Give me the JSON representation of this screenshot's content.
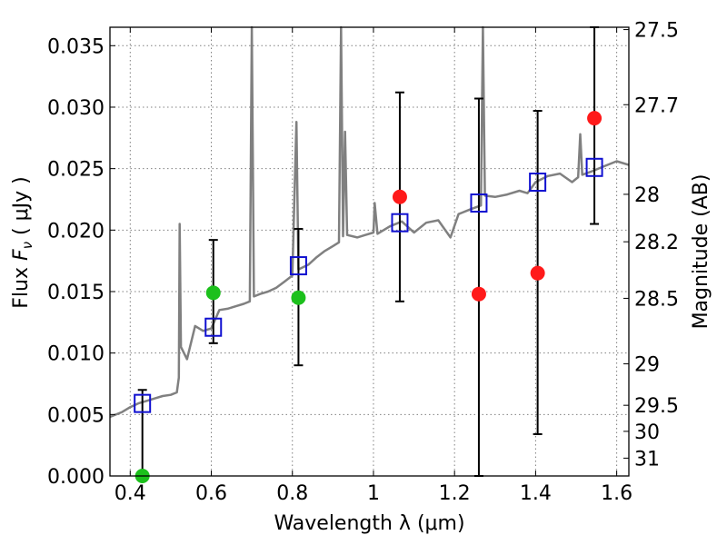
{
  "chart_data": {
    "type": "scatter",
    "title": "",
    "xlabel": "Wavelength  λ (μm)",
    "ylabel": "Flux  F_ν  ( μJy )",
    "ylabel_parts": {
      "main": "Flux  ",
      "symbol": "F",
      "sub": "ν",
      "unit": "  ( μJy )"
    },
    "y2label": "Magnitude (AB)",
    "xlim": [
      0.35,
      1.63
    ],
    "ylim": [
      0.0,
      0.0365
    ],
    "grid": true,
    "x_ticks": [
      0.4,
      0.6,
      0.8,
      1.0,
      1.2,
      1.4,
      1.6
    ],
    "x_tick_labels": [
      "0.4",
      "0.6",
      "0.8",
      "1",
      "1.2",
      "1.4",
      "1.6"
    ],
    "y_ticks": [
      0.0,
      0.005,
      0.01,
      0.015,
      0.02,
      0.025,
      0.03,
      0.035
    ],
    "y_tick_labels": [
      "0.000",
      "0.005",
      "0.010",
      "0.015",
      "0.020",
      "0.025",
      "0.030",
      "0.035"
    ],
    "y2_ticks": [
      {
        "label": "27.5",
        "flux": 0.03631
      },
      {
        "label": "27.7",
        "flux": 0.0302
      },
      {
        "label": "28",
        "flux": 0.02291
      },
      {
        "label": "28.2",
        "flux": 0.01905
      },
      {
        "label": "28.5",
        "flux": 0.01445
      },
      {
        "label": "29",
        "flux": 0.00912
      },
      {
        "label": "29.5",
        "flux": 0.00575
      },
      {
        "label": "30",
        "flux": 0.00363
      },
      {
        "label": "31",
        "flux": 0.00145
      }
    ],
    "series": [
      {
        "name": "",
        "kind": "line",
        "color": "#808080",
        "points": [
          [
            0.35,
            0.0048
          ],
          [
            0.38,
            0.0052
          ],
          [
            0.4,
            0.0056
          ],
          [
            0.42,
            0.0059
          ],
          [
            0.44,
            0.0061
          ],
          [
            0.46,
            0.0063
          ],
          [
            0.48,
            0.0065
          ],
          [
            0.5,
            0.0066
          ],
          [
            0.515,
            0.0068
          ],
          [
            0.52,
            0.008
          ],
          [
            0.522,
            0.0205
          ],
          [
            0.525,
            0.0105
          ],
          [
            0.54,
            0.0095
          ],
          [
            0.56,
            0.0122
          ],
          [
            0.58,
            0.0118
          ],
          [
            0.6,
            0.012
          ],
          [
            0.62,
            0.0135
          ],
          [
            0.64,
            0.0136
          ],
          [
            0.66,
            0.0138
          ],
          [
            0.68,
            0.014
          ],
          [
            0.695,
            0.0142
          ],
          [
            0.7,
            0.0365
          ],
          [
            0.705,
            0.0146
          ],
          [
            0.72,
            0.0148
          ],
          [
            0.74,
            0.015
          ],
          [
            0.76,
            0.0153
          ],
          [
            0.78,
            0.0158
          ],
          [
            0.8,
            0.0163
          ],
          [
            0.81,
            0.0288
          ],
          [
            0.815,
            0.0168
          ],
          [
            0.84,
            0.0172
          ],
          [
            0.86,
            0.0178
          ],
          [
            0.88,
            0.0183
          ],
          [
            0.9,
            0.0187
          ],
          [
            0.915,
            0.019
          ],
          [
            0.92,
            0.0365
          ],
          [
            0.925,
            0.0195
          ],
          [
            0.93,
            0.028
          ],
          [
            0.935,
            0.0196
          ],
          [
            0.96,
            0.0194
          ],
          [
            0.98,
            0.0196
          ],
          [
            1.0,
            0.0198
          ],
          [
            1.003,
            0.0222
          ],
          [
            1.01,
            0.0197
          ],
          [
            1.04,
            0.0203
          ],
          [
            1.07,
            0.0207
          ],
          [
            1.1,
            0.0198
          ],
          [
            1.13,
            0.0206
          ],
          [
            1.16,
            0.0208
          ],
          [
            1.19,
            0.0194
          ],
          [
            1.21,
            0.0213
          ],
          [
            1.24,
            0.0217
          ],
          [
            1.265,
            0.022
          ],
          [
            1.27,
            0.0365
          ],
          [
            1.275,
            0.0228
          ],
          [
            1.3,
            0.0227
          ],
          [
            1.33,
            0.0229
          ],
          [
            1.36,
            0.0232
          ],
          [
            1.38,
            0.023
          ],
          [
            1.4,
            0.0239
          ],
          [
            1.43,
            0.0244
          ],
          [
            1.46,
            0.0246
          ],
          [
            1.49,
            0.0239
          ],
          [
            1.505,
            0.0243
          ],
          [
            1.51,
            0.0278
          ],
          [
            1.515,
            0.0245
          ],
          [
            1.54,
            0.0248
          ],
          [
            1.57,
            0.0252
          ],
          [
            1.6,
            0.0256
          ],
          [
            1.63,
            0.0253
          ]
        ]
      },
      {
        "name": "",
        "kind": "points",
        "marker": "circle",
        "color": "#1cc01c",
        "points": [
          [
            0.43,
            0.0
          ],
          [
            0.605,
            0.0149
          ],
          [
            0.815,
            0.0145
          ]
        ],
        "errors": [
          [
            0.0,
            0.007
          ],
          null,
          [
            0.009,
            0.0201
          ]
        ]
      },
      {
        "name": "",
        "kind": "points",
        "marker": "circle",
        "color": "#ff1a1a",
        "points": [
          [
            1.065,
            0.0227
          ],
          [
            1.26,
            0.0148
          ],
          [
            1.405,
            0.0165
          ],
          [
            1.545,
            0.0291
          ]
        ],
        "errors": [
          [
            0.0142,
            0.0312
          ],
          [
            0.0,
            0.0307
          ],
          [
            0.0034,
            0.0297
          ],
          [
            0.0205,
            0.0365
          ]
        ]
      },
      {
        "name": "",
        "kind": "points",
        "marker": "square",
        "color": "#1010d0",
        "points": [
          [
            0.43,
            0.0059
          ],
          [
            0.605,
            0.0121
          ],
          [
            0.815,
            0.0171
          ],
          [
            1.065,
            0.0206
          ],
          [
            1.26,
            0.0222
          ],
          [
            1.405,
            0.0239
          ],
          [
            1.545,
            0.0251
          ]
        ],
        "errors": [
          null,
          [
            0.0108,
            0.0192
          ],
          null,
          null,
          null,
          null,
          null
        ]
      }
    ]
  }
}
